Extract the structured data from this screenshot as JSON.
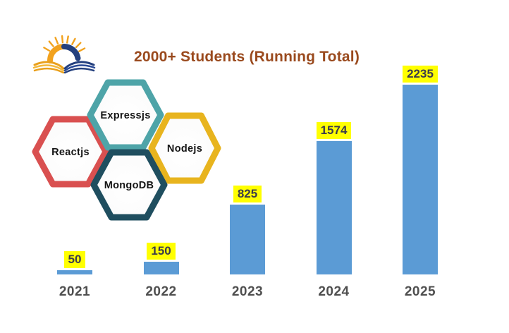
{
  "title": {
    "text": "2000+ Students (Running Total)",
    "color": "#9A4A1E"
  },
  "logo": {
    "icon": "sunrise-open-book-logo",
    "colors": {
      "orange": "#F2A21E",
      "gold": "#F3B93B",
      "navy": "#24407E"
    }
  },
  "mern": {
    "items": [
      {
        "label": "Expressjs",
        "color": "#4EA4A8"
      },
      {
        "label": "Reactjs",
        "color": "#D95050"
      },
      {
        "label": "Nodejs",
        "color": "#E8B41E"
      },
      {
        "label": "MongoDB",
        "color": "#1F4E5F"
      }
    ]
  },
  "chart_data": {
    "type": "bar",
    "categories": [
      "2021",
      "2022",
      "2023",
      "2024",
      "2025"
    ],
    "values": [
      50,
      150,
      825,
      1574,
      2235
    ],
    "title": "2000+ Students (Running Total)",
    "xlabel": "",
    "ylabel": "",
    "ylim": [
      0,
      2350
    ],
    "gridlines": false,
    "legend": "none",
    "axes_visible": false,
    "bar_color": "#5B9BD5",
    "data_label_bg": "#FFFF00",
    "data_label_color": "#3B3B4B",
    "axis_label_color": "#4F4F4F"
  }
}
